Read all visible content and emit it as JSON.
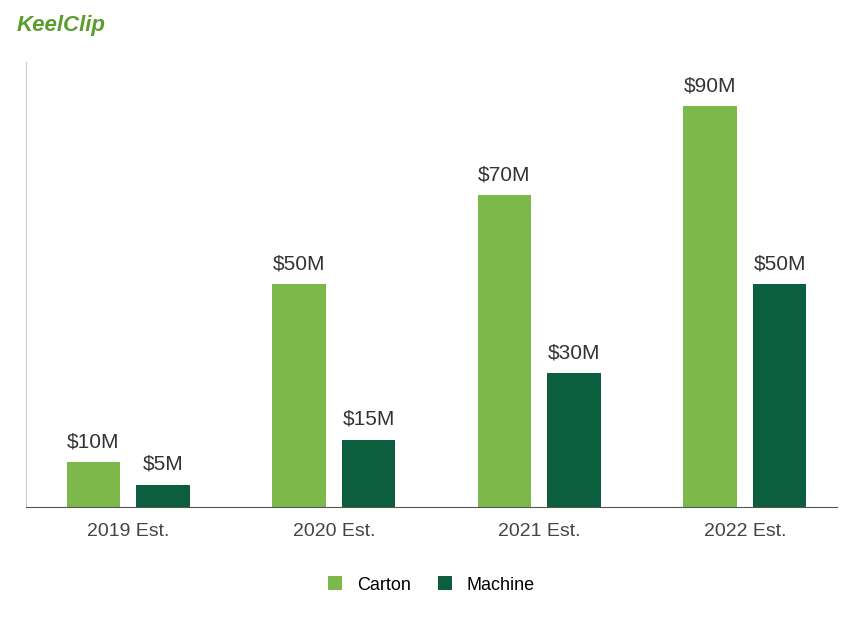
{
  "chart_data": {
    "type": "bar",
    "title": "KeelClip",
    "categories": [
      "2019 Est.",
      "2020 Est.",
      "2021 Est.",
      "2022 Est."
    ],
    "series": [
      {
        "name": "Carton",
        "color": "#7cb94a",
        "values": [
          10,
          50,
          70,
          90
        ],
        "value_labels": [
          "$10M",
          "$50M",
          "$70M",
          "$90M"
        ]
      },
      {
        "name": "Machine",
        "color": "#0b5e3e",
        "values": [
          5,
          15,
          30,
          50
        ],
        "value_labels": [
          "$5M",
          "$15M",
          "$30M",
          "$50M"
        ]
      }
    ],
    "ylim": [
      0,
      100
    ],
    "data_labels": true,
    "tick_labels": "x",
    "grid": false,
    "legend": "bottom"
  }
}
